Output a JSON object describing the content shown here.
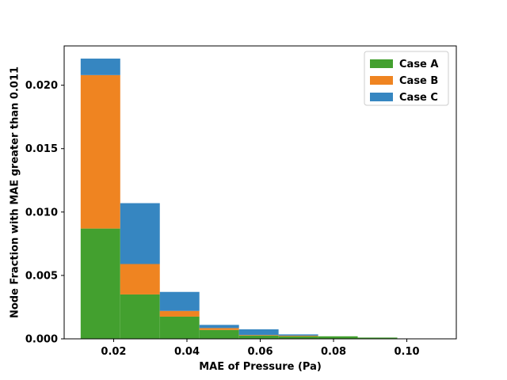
{
  "chart_data": {
    "type": "bar",
    "title": "",
    "xlabel": "MAE of Pressure (Pa)",
    "ylabel": "Node Fraction with MAE greater than 0.011",
    "xlim": [
      0.0065,
      0.1135
    ],
    "ylim": [
      0.0,
      0.0231
    ],
    "x_ticks": [
      {
        "value": 0.02,
        "label": "0.02"
      },
      {
        "value": 0.04,
        "label": "0.04"
      },
      {
        "value": 0.06,
        "label": "0.06"
      },
      {
        "value": 0.08,
        "label": "0.08"
      },
      {
        "value": 0.1,
        "label": "0.10"
      }
    ],
    "y_ticks": [
      {
        "value": 0.0,
        "label": "0.000"
      },
      {
        "value": 0.005,
        "label": "0.005"
      },
      {
        "value": 0.01,
        "label": "0.010"
      },
      {
        "value": 0.015,
        "label": "0.015"
      },
      {
        "value": 0.02,
        "label": "0.020"
      }
    ],
    "bin_edges": [
      0.011,
      0.0218,
      0.0326,
      0.0434,
      0.0542,
      0.065,
      0.0758,
      0.0866,
      0.0974,
      0.1082
    ],
    "stacked": true,
    "series": [
      {
        "name": "Case A",
        "color": "#43a02f",
        "values": [
          0.0087,
          0.0035,
          0.00175,
          0.0007,
          0.00025,
          0.0002,
          0.0002,
          0.0001,
          0.0
        ]
      },
      {
        "name": "Case B",
        "color": "#ef8421",
        "values": [
          0.0121,
          0.0024,
          0.00045,
          0.00015,
          5e-05,
          5e-05,
          0.0,
          0.0,
          0.0
        ]
      },
      {
        "name": "Case C",
        "color": "#3686c1",
        "values": [
          0.0013,
          0.0048,
          0.0015,
          0.00025,
          0.00045,
          0.0001,
          0.0,
          0.0,
          0.0
        ]
      }
    ],
    "legend_position": "top-right",
    "grid": false
  }
}
